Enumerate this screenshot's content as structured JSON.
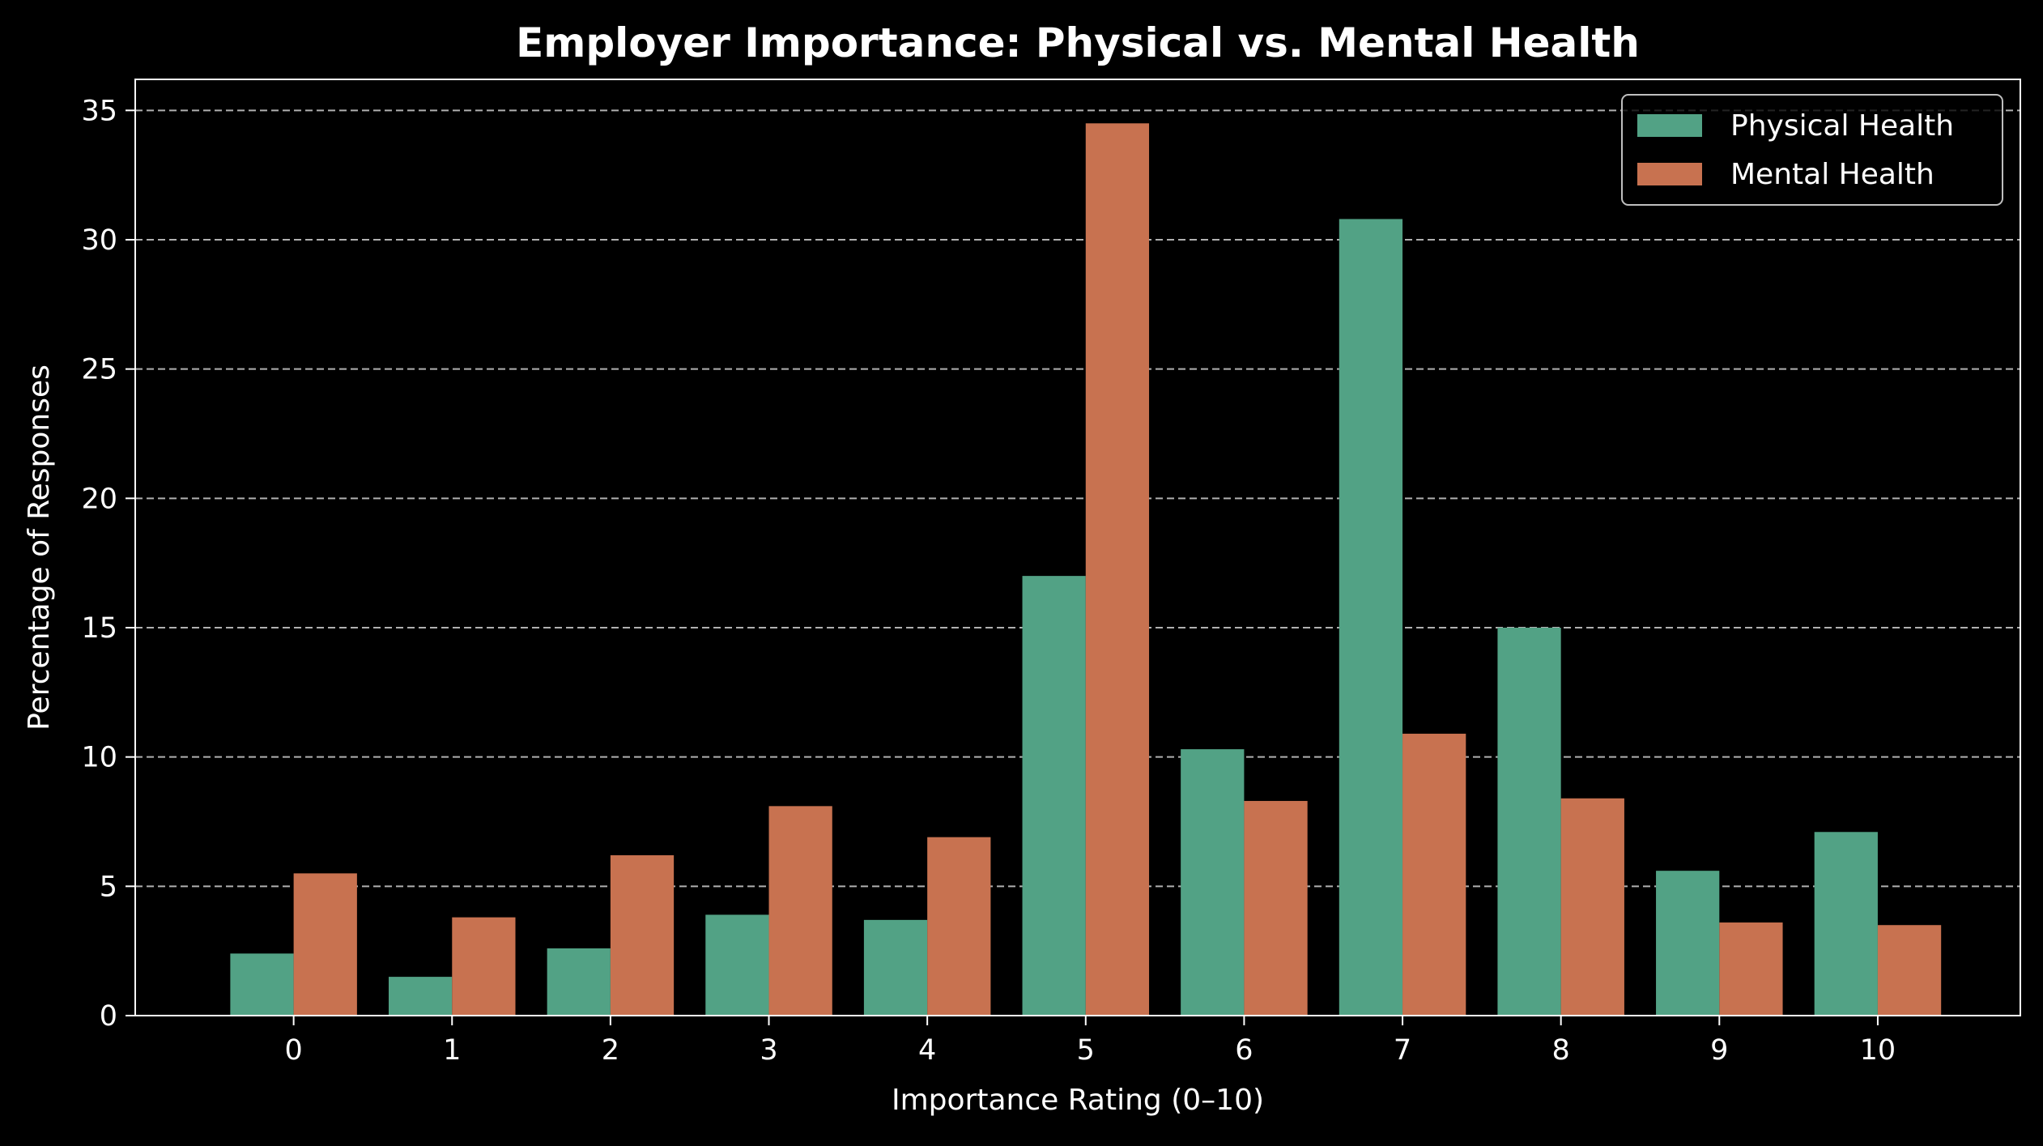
{
  "chart_data": {
    "type": "bar",
    "title": "Employer Importance: Physical vs. Mental Health",
    "xlabel": "Importance Rating (0–10)",
    "ylabel": "Percentage of Responses",
    "categories": [
      "0",
      "1",
      "2",
      "3",
      "4",
      "5",
      "6",
      "7",
      "8",
      "9",
      "10"
    ],
    "series": [
      {
        "name": "Physical Health",
        "color": "#52a285",
        "values": [
          2.4,
          1.5,
          2.6,
          3.9,
          3.7,
          17.0,
          10.3,
          30.8,
          15.0,
          5.6,
          7.1
        ]
      },
      {
        "name": "Mental Health",
        "color": "#c87250",
        "values": [
          5.5,
          3.8,
          6.2,
          8.1,
          6.9,
          34.5,
          8.3,
          10.9,
          8.4,
          3.6,
          3.5
        ]
      }
    ],
    "yticks": [
      0,
      5,
      10,
      15,
      20,
      25,
      30,
      35
    ],
    "ylim": [
      0,
      36.2
    ],
    "grid": "y-dashed",
    "legend": "top-right"
  }
}
